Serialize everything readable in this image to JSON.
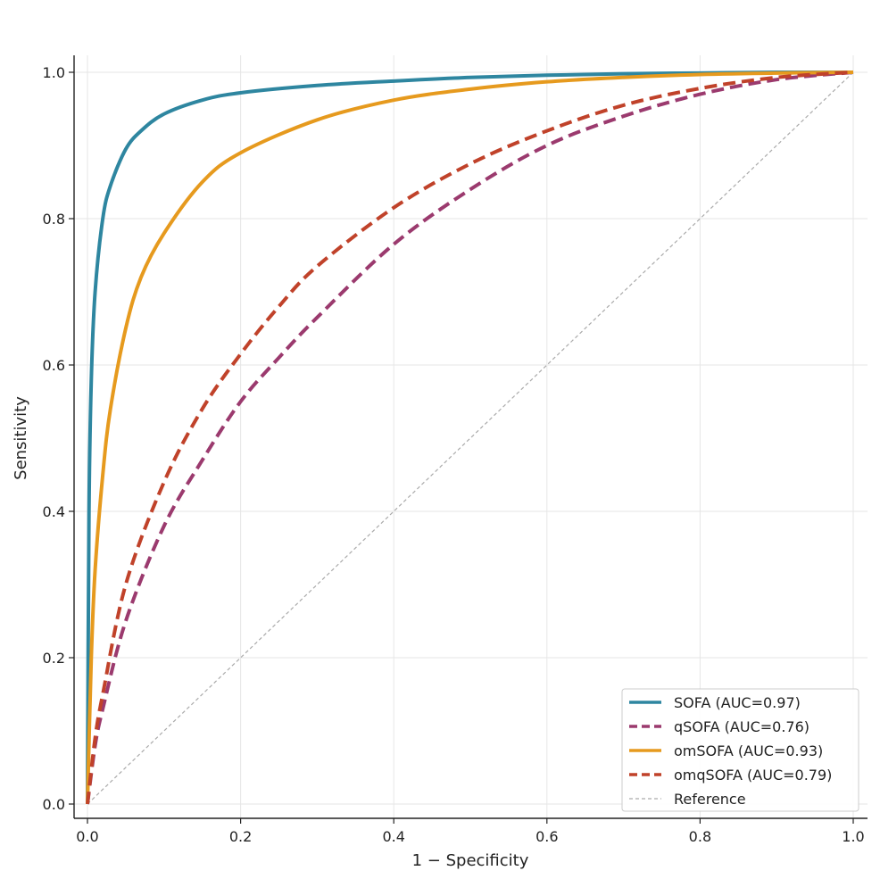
{
  "chart_data": {
    "type": "line",
    "title": "",
    "xlabel": "1 − Specificity",
    "ylabel": "Sensitivity",
    "xlim": [
      0.0,
      1.0
    ],
    "ylim": [
      0.0,
      1.0
    ],
    "x_ticks": [
      "0.0",
      "0.2",
      "0.4",
      "0.6",
      "0.8",
      "1.0"
    ],
    "y_ticks": [
      "0.0",
      "0.2",
      "0.4",
      "0.6",
      "0.8",
      "1.0"
    ],
    "grid": true,
    "legend_position": "lower-right",
    "series": [
      {
        "name": "SOFA (AUC=0.97)",
        "color": "#2E86A0",
        "style": "solid",
        "x": [
          0.0,
          0.002,
          0.005,
          0.01,
          0.02,
          0.03,
          0.05,
          0.07,
          0.1,
          0.15,
          0.2,
          0.3,
          0.4,
          0.5,
          0.6,
          0.7,
          0.8,
          0.9,
          1.0
        ],
        "y": [
          0.0,
          0.4,
          0.58,
          0.7,
          0.8,
          0.845,
          0.895,
          0.92,
          0.943,
          0.962,
          0.972,
          0.982,
          0.988,
          0.993,
          0.996,
          0.998,
          0.999,
          1.0,
          1.0
        ]
      },
      {
        "name": "qSOFA (AUC=0.76)",
        "color": "#9B3A6E",
        "style": "dashed",
        "x": [
          0.0,
          0.01,
          0.02,
          0.05,
          0.1,
          0.15,
          0.2,
          0.25,
          0.3,
          0.4,
          0.5,
          0.6,
          0.7,
          0.8,
          0.9,
          1.0
        ],
        "y": [
          0.0,
          0.08,
          0.13,
          0.25,
          0.38,
          0.47,
          0.55,
          0.61,
          0.665,
          0.765,
          0.84,
          0.9,
          0.94,
          0.97,
          0.99,
          1.0
        ]
      },
      {
        "name": "omSOFA (AUC=0.93)",
        "color": "#E69A1E",
        "style": "solid",
        "x": [
          0.0,
          0.005,
          0.01,
          0.02,
          0.03,
          0.05,
          0.07,
          0.1,
          0.15,
          0.2,
          0.3,
          0.4,
          0.5,
          0.6,
          0.7,
          0.8,
          0.9,
          1.0
        ],
        "y": [
          0.0,
          0.2,
          0.32,
          0.45,
          0.54,
          0.65,
          0.72,
          0.78,
          0.85,
          0.89,
          0.935,
          0.962,
          0.977,
          0.987,
          0.993,
          0.997,
          0.999,
          1.0
        ]
      },
      {
        "name": "omqSOFA (AUC=0.79)",
        "color": "#C0422A",
        "style": "dashed",
        "x": [
          0.0,
          0.01,
          0.02,
          0.05,
          0.1,
          0.15,
          0.2,
          0.25,
          0.3,
          0.4,
          0.5,
          0.6,
          0.7,
          0.8,
          0.9,
          1.0
        ],
        "y": [
          0.0,
          0.09,
          0.15,
          0.3,
          0.44,
          0.54,
          0.615,
          0.68,
          0.735,
          0.815,
          0.875,
          0.92,
          0.955,
          0.978,
          0.993,
          1.0
        ]
      },
      {
        "name": "Reference",
        "color": "#AAAAAA",
        "style": "thin-dashed",
        "x": [
          0.0,
          1.0
        ],
        "y": [
          0.0,
          1.0
        ]
      }
    ]
  }
}
